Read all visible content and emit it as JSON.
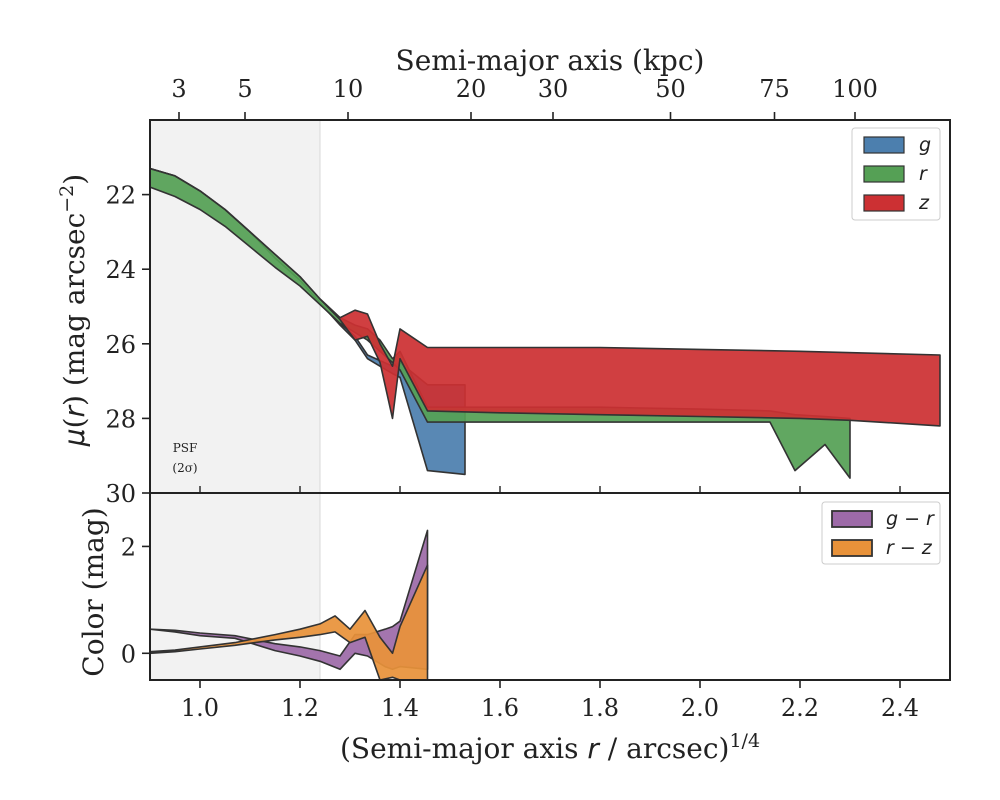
{
  "chart_data": [
    {
      "type": "area",
      "panel": "surface-brightness",
      "xlabel": "(Semi-major axis r / arcsec)^1/4",
      "ylabel": "μ(r) (mag arcsec^−2)",
      "top_axis": {
        "label": "Semi-major axis (kpc)",
        "ticks": [
          {
            "label": "3",
            "x": 0.958
          },
          {
            "label": "5",
            "x": 1.09
          },
          {
            "label": "10",
            "x": 1.296
          },
          {
            "label": "20",
            "x": 1.542
          },
          {
            "label": "30",
            "x": 1.706
          },
          {
            "label": "50",
            "x": 1.941
          },
          {
            "label": "75",
            "x": 2.149
          },
          {
            "label": "100",
            "x": 2.31
          }
        ]
      },
      "xlim": [
        0.9,
        2.5
      ],
      "ylim": [
        30.0,
        20.0
      ],
      "y_inverted": true,
      "xticks": [
        1.0,
        1.2,
        1.4,
        1.6,
        1.8,
        2.0,
        2.2,
        2.4
      ],
      "yticks": [
        22,
        24,
        26,
        28,
        30
      ],
      "legend_position": "top-right",
      "annotation": {
        "line1": "PSF",
        "line2": "(2σ)"
      },
      "psf_region": [
        0.9,
        1.24
      ],
      "series": [
        {
          "name": "g",
          "color": "#4c7fae",
          "upper": [
            [
              0.9,
              21.3
            ],
            [
              0.95,
              21.5
            ],
            [
              1.0,
              21.9
            ],
            [
              1.05,
              22.4
            ],
            [
              1.1,
              23.0
            ],
            [
              1.15,
              23.7
            ],
            [
              1.2,
              24.3
            ],
            [
              1.24,
              24.9
            ],
            [
              1.28,
              25.45
            ],
            [
              1.31,
              25.8
            ],
            [
              1.335,
              26.3
            ],
            [
              1.36,
              26.45
            ],
            [
              1.385,
              26.6
            ],
            [
              1.4,
              26.5
            ],
            [
              1.455,
              27.1
            ],
            [
              1.53,
              27.1
            ]
          ],
          "lower": [
            [
              0.9,
              21.3
            ],
            [
              0.95,
              21.5
            ],
            [
              1.0,
              21.9
            ],
            [
              1.05,
              22.4
            ],
            [
              1.1,
              23.0
            ],
            [
              1.15,
              23.7
            ],
            [
              1.2,
              24.3
            ],
            [
              1.24,
              24.9
            ],
            [
              1.28,
              25.5
            ],
            [
              1.31,
              25.9
            ],
            [
              1.335,
              26.4
            ],
            [
              1.36,
              26.6
            ],
            [
              1.385,
              26.8
            ],
            [
              1.4,
              26.9
            ],
            [
              1.455,
              29.4
            ],
            [
              1.53,
              29.5
            ]
          ]
        },
        {
          "name": "r",
          "color": "#55a055",
          "upper": [
            [
              0.9,
              21.3
            ],
            [
              0.95,
              21.5
            ],
            [
              1.0,
              21.9
            ],
            [
              1.05,
              22.4
            ],
            [
              1.1,
              23.0
            ],
            [
              1.15,
              23.6
            ],
            [
              1.2,
              24.2
            ],
            [
              1.24,
              24.8
            ],
            [
              1.28,
              25.3
            ],
            [
              1.31,
              25.5
            ],
            [
              1.335,
              25.6
            ],
            [
              1.36,
              25.9
            ],
            [
              1.385,
              26.4
            ],
            [
              1.4,
              26.2
            ],
            [
              1.455,
              27.7
            ],
            [
              1.6,
              27.7
            ],
            [
              1.8,
              27.7
            ],
            [
              2.0,
              27.75
            ],
            [
              2.14,
              27.8
            ],
            [
              2.19,
              27.9
            ],
            [
              2.25,
              27.95
            ],
            [
              2.3,
              28.0
            ]
          ],
          "lower": [
            [
              0.9,
              21.8
            ],
            [
              0.95,
              22.05
            ],
            [
              1.0,
              22.4
            ],
            [
              1.05,
              22.85
            ],
            [
              1.1,
              23.4
            ],
            [
              1.15,
              23.95
            ],
            [
              1.2,
              24.45
            ],
            [
              1.24,
              24.95
            ],
            [
              1.28,
              25.45
            ],
            [
              1.31,
              25.7
            ],
            [
              1.335,
              25.9
            ],
            [
              1.36,
              26.2
            ],
            [
              1.385,
              26.5
            ],
            [
              1.4,
              26.7
            ],
            [
              1.455,
              28.1
            ],
            [
              1.6,
              28.1
            ],
            [
              1.8,
              28.1
            ],
            [
              2.0,
              28.1
            ],
            [
              2.14,
              28.1
            ],
            [
              2.19,
              29.4
            ],
            [
              2.25,
              28.7
            ],
            [
              2.3,
              29.6
            ]
          ]
        },
        {
          "name": "z",
          "color": "#cc3033",
          "upper": [
            [
              0.9,
              21.3
            ],
            [
              0.95,
              21.5
            ],
            [
              1.0,
              21.9
            ],
            [
              1.05,
              22.4
            ],
            [
              1.1,
              23.0
            ],
            [
              1.15,
              23.6
            ],
            [
              1.2,
              24.2
            ],
            [
              1.24,
              24.8
            ],
            [
              1.28,
              25.3
            ],
            [
              1.31,
              25.1
            ],
            [
              1.335,
              25.2
            ],
            [
              1.36,
              26.0
            ],
            [
              1.385,
              26.6
            ],
            [
              1.4,
              25.6
            ],
            [
              1.455,
              26.1
            ],
            [
              1.6,
              26.1
            ],
            [
              1.8,
              26.1
            ],
            [
              2.0,
              26.15
            ],
            [
              2.2,
              26.2
            ],
            [
              2.48,
              26.3
            ]
          ],
          "lower": [
            [
              0.9,
              21.3
            ],
            [
              0.95,
              21.5
            ],
            [
              1.0,
              21.9
            ],
            [
              1.05,
              22.4
            ],
            [
              1.1,
              23.0
            ],
            [
              1.15,
              23.6
            ],
            [
              1.2,
              24.2
            ],
            [
              1.24,
              24.8
            ],
            [
              1.28,
              25.35
            ],
            [
              1.31,
              25.9
            ],
            [
              1.335,
              25.8
            ],
            [
              1.36,
              26.5
            ],
            [
              1.385,
              28.0
            ],
            [
              1.4,
              26.4
            ],
            [
              1.455,
              27.8
            ],
            [
              1.6,
              27.85
            ],
            [
              1.8,
              27.9
            ],
            [
              2.0,
              27.95
            ],
            [
              2.2,
              28.0
            ],
            [
              2.3,
              28.05
            ],
            [
              2.48,
              28.2
            ]
          ]
        }
      ]
    },
    {
      "type": "area",
      "panel": "color",
      "xlabel": "(Semi-major axis r / arcsec)^1/4",
      "ylabel": "Color (mag)",
      "xlim": [
        0.9,
        2.5
      ],
      "ylim": [
        -0.5,
        3.0
      ],
      "xticks": [
        1.0,
        1.2,
        1.4,
        1.6,
        1.8,
        2.0,
        2.2,
        2.4
      ],
      "xtick_labels": [
        "1.0",
        "1.2",
        "1.4",
        "1.6",
        "1.8",
        "2.0",
        "2.2",
        "2.4"
      ],
      "yticks": [
        0,
        2
      ],
      "legend_position": "top-right",
      "series": [
        {
          "name": "g − r",
          "color": "#9d6aa8",
          "upper": [
            [
              0.9,
              0.45
            ],
            [
              0.95,
              0.43
            ],
            [
              1.0,
              0.38
            ],
            [
              1.07,
              0.33
            ],
            [
              1.15,
              0.18
            ],
            [
              1.2,
              0.12
            ],
            [
              1.24,
              0.05
            ],
            [
              1.28,
              -0.05
            ],
            [
              1.31,
              0.35
            ],
            [
              1.335,
              0.35
            ],
            [
              1.37,
              0.45
            ],
            [
              1.385,
              0.5
            ],
            [
              1.4,
              0.6
            ],
            [
              1.455,
              2.3
            ]
          ],
          "lower": [
            [
              0.9,
              0.45
            ],
            [
              0.95,
              0.4
            ],
            [
              1.0,
              0.33
            ],
            [
              1.07,
              0.28
            ],
            [
              1.15,
              0.05
            ],
            [
              1.2,
              -0.05
            ],
            [
              1.24,
              -0.15
            ],
            [
              1.28,
              -0.3
            ],
            [
              1.31,
              0.0
            ],
            [
              1.335,
              -0.05
            ],
            [
              1.37,
              -0.25
            ],
            [
              1.385,
              -0.3
            ],
            [
              1.4,
              -0.25
            ],
            [
              1.455,
              -0.3
            ]
          ]
        },
        {
          "name": "r − z",
          "color": "#e8923a",
          "upper": [
            [
              0.9,
              0.03
            ],
            [
              0.95,
              0.06
            ],
            [
              1.0,
              0.12
            ],
            [
              1.07,
              0.2
            ],
            [
              1.15,
              0.35
            ],
            [
              1.2,
              0.45
            ],
            [
              1.24,
              0.55
            ],
            [
              1.27,
              0.7
            ],
            [
              1.3,
              0.45
            ],
            [
              1.33,
              0.8
            ],
            [
              1.36,
              0.3
            ],
            [
              1.385,
              0.0
            ],
            [
              1.4,
              0.5
            ],
            [
              1.455,
              1.65
            ]
          ],
          "lower": [
            [
              0.9,
              0.0
            ],
            [
              0.95,
              0.03
            ],
            [
              1.0,
              0.08
            ],
            [
              1.07,
              0.15
            ],
            [
              1.15,
              0.25
            ],
            [
              1.2,
              0.3
            ],
            [
              1.24,
              0.35
            ],
            [
              1.27,
              0.4
            ],
            [
              1.3,
              0.2
            ],
            [
              1.33,
              0.3
            ],
            [
              1.36,
              -0.5
            ],
            [
              1.385,
              -0.45
            ],
            [
              1.4,
              -0.5
            ],
            [
              1.455,
              -0.5
            ]
          ]
        }
      ]
    }
  ]
}
